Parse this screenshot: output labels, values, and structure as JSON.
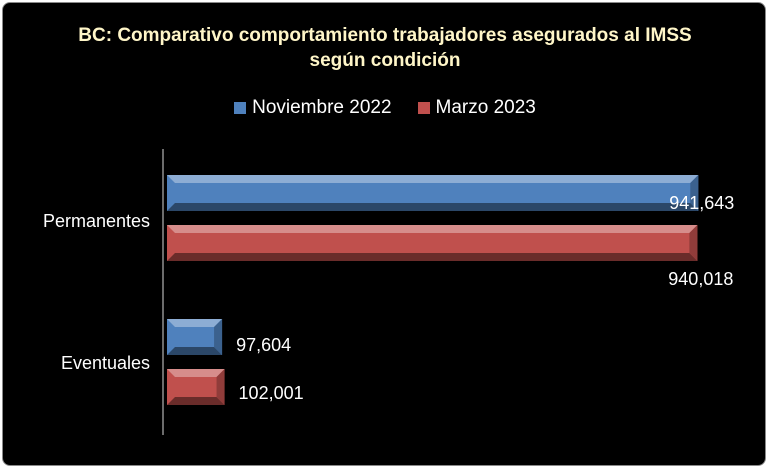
{
  "chart_data": {
    "type": "bar",
    "orientation": "horizontal",
    "title_lines": [
      "BC: Comparativo comportamiento trabajadores asegurados al IMSS",
      "según condición"
    ],
    "categories": [
      "Permanentes",
      "Eventuales"
    ],
    "series": [
      {
        "name": "Noviembre 2022",
        "color": "#4f81bd",
        "values": [
          941643,
          97604
        ],
        "labels": [
          "941,643",
          "97,604"
        ]
      },
      {
        "name": "Marzo 2023",
        "color": "#c0504d",
        "values": [
          940018,
          102001
        ],
        "labels": [
          "940,018",
          "102,001"
        ]
      }
    ],
    "xlim": [
      0,
      950000
    ],
    "grid": false,
    "legend_position": "top"
  }
}
